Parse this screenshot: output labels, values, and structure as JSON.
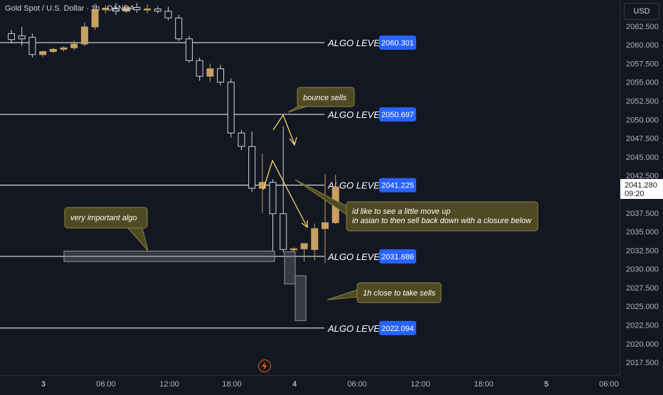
{
  "header": {
    "symbol_title": "Gold Spot / U.S. Dollar · 1h · OANDA",
    "currency_button": "USD"
  },
  "chart_data": {
    "type": "candlestick",
    "ylim": [
      2015.8,
      2066.0
    ],
    "price_ticks": [
      "2062.500",
      "2060.000",
      "2057.500",
      "2055.000",
      "2052.500",
      "2050.000",
      "2047.500",
      "2045.000",
      "2042.500",
      "2040.000",
      "2037.500",
      "2035.000",
      "2032.500",
      "2030.000",
      "2027.500",
      "2025.000",
      "2022.500",
      "2020.000",
      "2017.500"
    ],
    "time_ticks": [
      "3",
      "06:00",
      "12:00",
      "18:00",
      "4",
      "06:00",
      "12:00",
      "18:00",
      "5",
      "06:00"
    ],
    "current_price": {
      "value": "2041.280",
      "countdown": "09:20"
    },
    "candles": [
      {
        "i": 0,
        "o": 2061.5,
        "h": 2062.0,
        "l": 2060.2,
        "c": 2060.7
      },
      {
        "i": 1,
        "o": 2061.2,
        "h": 2062.4,
        "l": 2059.9,
        "c": 2060.8
      },
      {
        "i": 2,
        "o": 2061.0,
        "h": 2061.5,
        "l": 2058.3,
        "c": 2058.7
      },
      {
        "i": 3,
        "o": 2058.7,
        "h": 2059.2,
        "l": 2058.4,
        "c": 2059.1
      },
      {
        "i": 4,
        "o": 2059.1,
        "h": 2059.6,
        "l": 2058.9,
        "c": 2059.4
      },
      {
        "i": 5,
        "o": 2059.4,
        "h": 2059.8,
        "l": 2059.1,
        "c": 2059.6
      },
      {
        "i": 6,
        "o": 2059.6,
        "h": 2060.6,
        "l": 2059.3,
        "c": 2060.1
      },
      {
        "i": 7,
        "o": 2060.1,
        "h": 2063.0,
        "l": 2059.8,
        "c": 2062.4
      },
      {
        "i": 8,
        "o": 2062.4,
        "h": 2065.5,
        "l": 2062.0,
        "c": 2064.7
      },
      {
        "i": 9,
        "o": 2064.7,
        "h": 2065.3,
        "l": 2064.2,
        "c": 2064.9
      },
      {
        "i": 10,
        "o": 2064.9,
        "h": 2065.6,
        "l": 2064.0,
        "c": 2064.5
      },
      {
        "i": 11,
        "o": 2064.5,
        "h": 2065.2,
        "l": 2064.3,
        "c": 2065.0
      },
      {
        "i": 12,
        "o": 2065.0,
        "h": 2065.6,
        "l": 2064.3,
        "c": 2064.7
      },
      {
        "i": 13,
        "o": 2064.7,
        "h": 2065.4,
        "l": 2064.2,
        "c": 2064.8
      },
      {
        "i": 14,
        "o": 2064.8,
        "h": 2065.2,
        "l": 2064.2,
        "c": 2064.5
      },
      {
        "i": 15,
        "o": 2064.5,
        "h": 2065.1,
        "l": 2063.3,
        "c": 2063.6
      },
      {
        "i": 16,
        "o": 2063.6,
        "h": 2064.0,
        "l": 2060.5,
        "c": 2060.8
      },
      {
        "i": 17,
        "o": 2060.8,
        "h": 2061.2,
        "l": 2057.6,
        "c": 2057.9
      },
      {
        "i": 18,
        "o": 2057.9,
        "h": 2058.3,
        "l": 2055.2,
        "c": 2055.8
      },
      {
        "i": 19,
        "o": 2055.8,
        "h": 2057.5,
        "l": 2055.0,
        "c": 2056.8
      },
      {
        "i": 20,
        "o": 2056.8,
        "h": 2057.3,
        "l": 2054.6,
        "c": 2055.0
      },
      {
        "i": 21,
        "o": 2055.0,
        "h": 2055.5,
        "l": 2047.6,
        "c": 2048.2
      },
      {
        "i": 22,
        "o": 2048.2,
        "h": 2048.6,
        "l": 2045.9,
        "c": 2046.4
      },
      {
        "i": 23,
        "o": 2046.4,
        "h": 2048.4,
        "l": 2040.3,
        "c": 2040.8
      },
      {
        "i": 24,
        "o": 2040.8,
        "h": 2045.4,
        "l": 2037.5,
        "c": 2041.6
      },
      {
        "i": 25,
        "o": 2041.6,
        "h": 2042.0,
        "l": 2032.4,
        "c": 2037.4
      },
      {
        "i": 26,
        "o": 2037.4,
        "h": 2049.1,
        "l": 2032.2,
        "c": 2032.6
      },
      {
        "i": 27,
        "o": 2032.6,
        "h": 2032.9,
        "l": 2032.3,
        "c": 2032.7
      },
      {
        "i": 28,
        "o": 2032.7,
        "h": 2033.2,
        "l": 2031.0,
        "c": 2033.4
      },
      {
        "i": 29,
        "o": 2032.6,
        "h": 2036.1,
        "l": 2031.2,
        "c": 2035.4
      },
      {
        "i": 30,
        "o": 2035.4,
        "h": 2042.7,
        "l": 2030.8,
        "c": 2036.2
      },
      {
        "i": 31,
        "o": 2036.2,
        "h": 2042.6,
        "l": 2036.0,
        "c": 2041.0
      }
    ],
    "algo_levels": [
      {
        "label": "ALGO LEVEL",
        "value": 2060.301,
        "text": "2060.301"
      },
      {
        "label": "ALGO LEVEL",
        "value": 2050.697,
        "text": "2050.697"
      },
      {
        "label": "ALGO LEVEL",
        "value": 2041.225,
        "text": "2041.225"
      },
      {
        "label": "ALGO LEVEL",
        "value": 2031.686,
        "text": "2031.686"
      },
      {
        "label": "ALGO LEVEL",
        "value": 2022.094,
        "text": "2022.094"
      }
    ],
    "projection_boxes": [
      {
        "o": 2032.3,
        "c": 2028.0
      },
      {
        "o": 2029.1,
        "c": 2023.1
      }
    ],
    "annotations": [
      {
        "text": "bounce sells"
      },
      {
        "text": "very important algo"
      },
      {
        "text": "id like to see a little move up\nin asian to then sell back down with a closure below"
      },
      {
        "text": "1h close to take sells"
      }
    ],
    "colors": {
      "background": "#131722",
      "up_candle": "#c8a064",
      "down_candle": "#ffffff",
      "level_line": "#ffffff",
      "level_badge": "#2962ff",
      "annotation_bg": "#4f4a24",
      "annotation_border": "#8c8440",
      "arrow": "#f5d76e",
      "current_price_badge": "#ffffff"
    }
  }
}
